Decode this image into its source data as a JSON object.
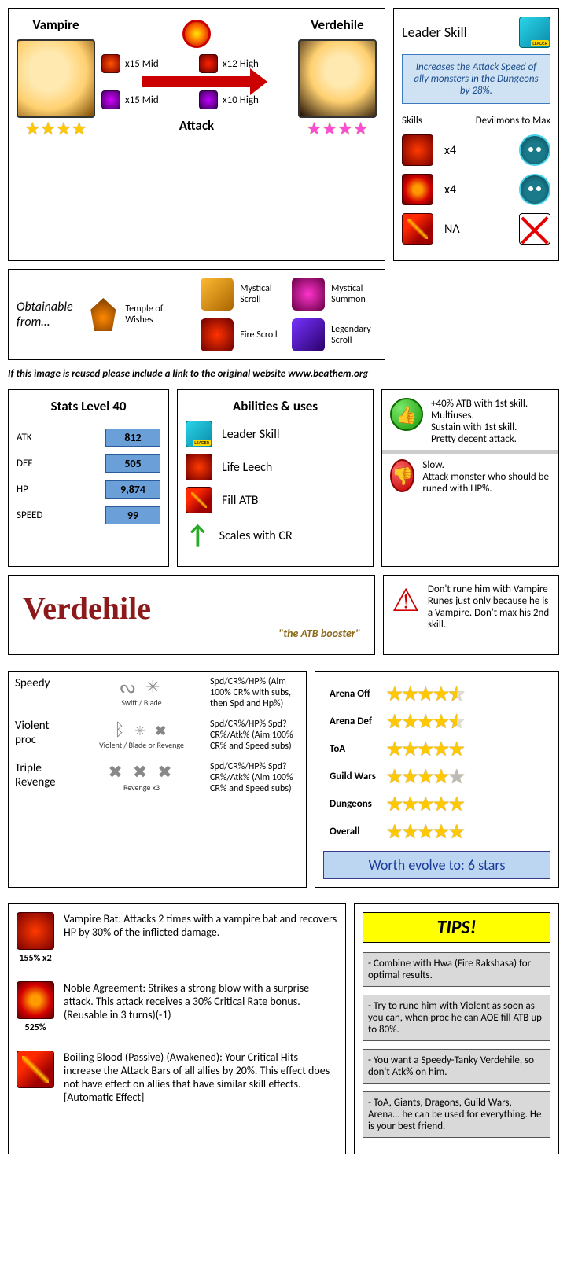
{
  "header": {
    "unawakened_name": "Vampire",
    "awakened_name": "Verdehile",
    "attack_label": "Attack",
    "base_stars": 4,
    "awaken_stars": 4,
    "essences": [
      {
        "label": "x15 Mid",
        "cls": "ess-fire-mid"
      },
      {
        "label": "x12 High",
        "cls": "ess-fire-high"
      },
      {
        "label": "x15 Mid",
        "cls": "ess-magic-mid"
      },
      {
        "label": "x10 High",
        "cls": "ess-magic-high"
      }
    ]
  },
  "leader": {
    "title": "Leader Skill",
    "desc": "Increases the Attack Speed of ally monsters in the Dungeons by 28%.",
    "skills_label": "Skills",
    "devilmons_label": "Devilmons to Max",
    "rows": [
      {
        "skill_cls": "skill-red1",
        "count": "x4",
        "dev_cls": "devilmon"
      },
      {
        "skill_cls": "skill-red2",
        "count": "x4",
        "dev_cls": "devilmon"
      },
      {
        "skill_cls": "skill-red3",
        "count": "NA",
        "dev_cls": "no-x"
      }
    ]
  },
  "obtain": {
    "title": "Obtainable from…",
    "items": [
      {
        "label": "Temple of Wishes",
        "cls": "obt-temple"
      },
      {
        "label": "Mystical Scroll",
        "cls": "obt-mscroll"
      },
      {
        "label": "Mystical Summon",
        "cls": "obt-msummon"
      },
      {
        "label": "Fire Scroll",
        "cls": "obt-fscroll"
      },
      {
        "label": "Legendary Scroll",
        "cls": "obt-lscroll"
      }
    ]
  },
  "reuse_note": "If this image is reused please include a link to the original website www.beathem.org",
  "stats": {
    "title": "Stats Level 40",
    "rows": [
      {
        "label": "ATK",
        "value": "812"
      },
      {
        "label": "DEF",
        "value": "505"
      },
      {
        "label": "HP",
        "value": "9,874"
      },
      {
        "label": "SPEED",
        "value": "99"
      }
    ]
  },
  "abilities": {
    "title": "Abilities & uses",
    "rows": [
      {
        "label": "Leader Skill",
        "cls": "skill-leader"
      },
      {
        "label": "Life Leech",
        "cls": "skill-red1"
      },
      {
        "label": "Fill ATB",
        "cls": "skill-red3"
      },
      {
        "label": "Scales with CR",
        "cls": "green-arrow",
        "glyph": "↑"
      }
    ]
  },
  "pros": "+40% ATB with 1st skill.\nMultiuses.\nSustain with 1st skill.\nPretty decent attack.",
  "cons": "Slow.\nAttack monster who should be runed with HP%.",
  "warning": "Don't rune him with Vampire Runes just only because he is a Vampire. Don't max his 2nd skill.",
  "name_card": {
    "name": "Verdehile",
    "tagline": "\"the ATB booster\""
  },
  "runes": {
    "rows": [
      {
        "name": "Speedy",
        "sets": "Swift / Blade",
        "glyphs": "ᔓ ✳",
        "stats": "Spd/CR%/HP% (Aim 100% CR% with subs, then Spd and Hp%)"
      },
      {
        "name": "Violent proc",
        "sets": "Violent / Blade or Revenge",
        "glyphs": "ᛒ ✳ ✖",
        "stats": "Spd/CR%/HP% Spd?CR%/Atk% (Aim 100% CR% and Speed subs)"
      },
      {
        "name": "Triple Revenge",
        "sets": "Revenge x3",
        "glyphs": "✖ ✖ ✖",
        "stats": "Spd/CR%/HP% Spd?CR%/Atk% (Aim 100% CR% and Speed subs)"
      }
    ]
  },
  "ratings": {
    "rows": [
      {
        "label": "Arena Off",
        "stars": 4.5
      },
      {
        "label": "Arena Def",
        "stars": 4.5
      },
      {
        "label": "ToA",
        "stars": 5
      },
      {
        "label": "Guild Wars",
        "stars": 4
      },
      {
        "label": "Dungeons",
        "stars": 5
      },
      {
        "label": "Overall",
        "stars": 5
      }
    ],
    "worth_label": "Worth evolve to: 6 stars"
  },
  "skills": [
    {
      "cls": "skill-red1",
      "mult": "155% x2",
      "desc": "Vampire Bat: Attacks 2 times with a vampire bat and recovers HP by 30% of the inflicted damage."
    },
    {
      "cls": "skill-red2",
      "mult": "525%",
      "desc": "Noble Agreement: Strikes a strong blow with a surprise attack. This attack receives a 30% Critical Rate bonus. (Reusable in 3 turns)(-1)"
    },
    {
      "cls": "skill-red3",
      "mult": "",
      "desc": "Boiling Blood (Passive) (Awakened): Your Critical Hits increase the Attack Bars of all allies by 20%. This effect does not have effect on allies that have similar skill effects. [Automatic Effect]"
    }
  ],
  "tips": {
    "title": "TIPS!",
    "items": [
      "- Combine with Hwa (Fire Rakshasa) for optimal results.",
      "- Try to rune him with Violent as soon as you can, when proc he can AOE fill ATB up to 80%.",
      "- You want a Speedy-Tanky Verdehile, so don't Atk% on him.",
      "- ToA, Giants, Dragons, Guild Wars, Arena… he can be used for everything. He is your best friend."
    ]
  }
}
